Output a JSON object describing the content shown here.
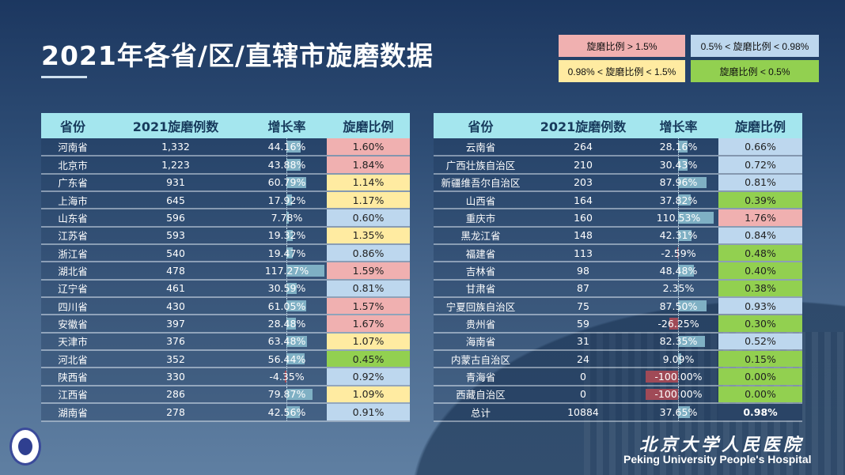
{
  "title": "2021年各省/区/直辖市旋磨数据",
  "legend": [
    {
      "label": "旋磨比例 > 1.5%",
      "color": "#f0b0b0"
    },
    {
      "label": "0.5% < 旋磨比例 < 0.98%",
      "color": "#bdd7ee"
    },
    {
      "label": "0.98% < 旋磨比例 < 1.5%",
      "color": "#ffeba1"
    },
    {
      "label": "旋磨比例 < 0.5%",
      "color": "#92d050"
    }
  ],
  "columns": [
    "省份",
    "2021旋磨例数",
    "增长率",
    "旋磨比例"
  ],
  "left_rows": [
    [
      "河南省",
      "1,332",
      "44.16%",
      "1.60%"
    ],
    [
      "北京市",
      "1,223",
      "43.88%",
      "1.84%"
    ],
    [
      "广东省",
      "931",
      "60.79%",
      "1.14%"
    ],
    [
      "上海市",
      "645",
      "17.92%",
      "1.17%"
    ],
    [
      "山东省",
      "596",
      "7.78%",
      "0.60%"
    ],
    [
      "江苏省",
      "593",
      "19.32%",
      "1.35%"
    ],
    [
      "浙江省",
      "540",
      "19.47%",
      "0.86%"
    ],
    [
      "湖北省",
      "478",
      "117.27%",
      "1.59%"
    ],
    [
      "辽宁省",
      "461",
      "30.59%",
      "0.81%"
    ],
    [
      "四川省",
      "430",
      "61.05%",
      "1.57%"
    ],
    [
      "安徽省",
      "397",
      "28.48%",
      "1.67%"
    ],
    [
      "天津市",
      "376",
      "63.48%",
      "1.07%"
    ],
    [
      "河北省",
      "352",
      "56.44%",
      "0.45%"
    ],
    [
      "陕西省",
      "330",
      "-4.35%",
      "0.92%"
    ],
    [
      "江西省",
      "286",
      "79.87%",
      "1.09%"
    ],
    [
      "湖南省",
      "278",
      "42.56%",
      "0.91%"
    ]
  ],
  "right_rows": [
    [
      "云南省",
      "264",
      "28.16%",
      "0.66%"
    ],
    [
      "广西壮族自治区",
      "210",
      "30.43%",
      "0.72%"
    ],
    [
      "新疆维吾尔自治区",
      "203",
      "87.96%",
      "0.81%"
    ],
    [
      "山西省",
      "164",
      "37.82%",
      "0.39%"
    ],
    [
      "重庆市",
      "160",
      "110.53%",
      "1.76%"
    ],
    [
      "黑龙江省",
      "148",
      "42.31%",
      "0.84%"
    ],
    [
      "福建省",
      "113",
      "-2.59%",
      "0.48%"
    ],
    [
      "吉林省",
      "98",
      "48.48%",
      "0.40%"
    ],
    [
      "甘肃省",
      "87",
      "2.35%",
      "0.38%"
    ],
    [
      "宁夏回族自治区",
      "75",
      "87.50%",
      "0.93%"
    ],
    [
      "贵州省",
      "59",
      "-26.25%",
      "0.30%"
    ],
    [
      "海南省",
      "31",
      "82.35%",
      "0.52%"
    ],
    [
      "内蒙古自治区",
      "24",
      "9.09%",
      "0.15%"
    ],
    [
      "青海省",
      "0",
      "-100.00%",
      "0.00%"
    ],
    [
      "西藏自治区",
      "0",
      "-100.00%",
      "0.00%"
    ]
  ],
  "total_row": [
    "总计",
    "10884",
    "37.65%",
    "0.98%"
  ],
  "logo_text": "PEKING UNIVERSITY 1898",
  "hospital_cn": "北京大学人民医院",
  "hospital_en": "Peking University People's Hospital"
}
